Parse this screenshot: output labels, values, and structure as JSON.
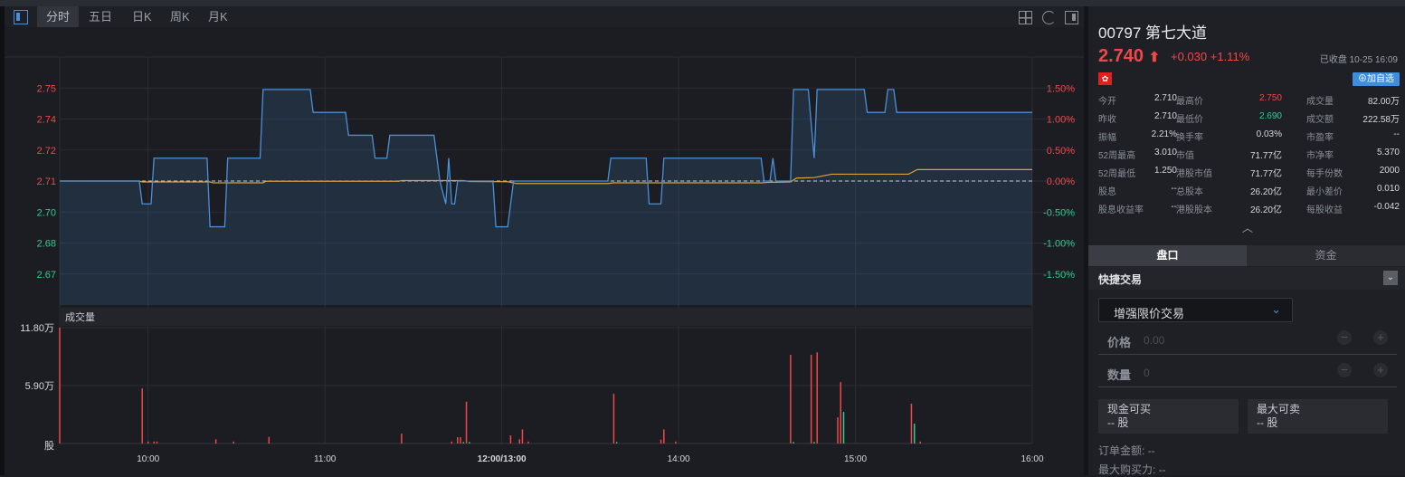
{
  "toolbar": {
    "tabs": [
      "分时",
      "五日",
      "日K",
      "周K",
      "月K"
    ],
    "active": "分时",
    "icons": [
      "grid-layout-icon",
      "refresh-icon",
      "panel-toggle-icon"
    ]
  },
  "colors": {
    "up": "#f04848",
    "down": "#2ecc8f",
    "price_line": "#4a90d9",
    "avg_line": "#d9a13a",
    "accent": "#3e8ee0"
  },
  "chart_data": [
    {
      "type": "line",
      "title": "分时",
      "x_axis_labels": [
        "10:00",
        "11:00",
        "12:00/13:00",
        "14:00",
        "15:00",
        "16:00"
      ],
      "x_axis_minutes": [
        30,
        90,
        150,
        210,
        270,
        330
      ],
      "minutes_total": 330,
      "prev_close": 2.71,
      "pct_range": [
        -2,
        2
      ],
      "left_ticks": [
        "2.75",
        "2.74",
        "2.72",
        "2.71",
        "2.70",
        "2.68",
        "2.67"
      ],
      "right_ticks": [
        "1.50%",
        "1.00%",
        "0.50%",
        "0.00%",
        "-0.50%",
        "-1.00%",
        "-1.50%"
      ],
      "tick_pcts": [
        1.5,
        1.0,
        0.5,
        0,
        -0.5,
        -1.0,
        -1.5
      ],
      "series": [
        {
          "name": "price",
          "points": [
            [
              0,
              2.71
            ],
            [
              27,
              2.71
            ],
            [
              28,
              2.7
            ],
            [
              31,
              2.7
            ],
            [
              32,
              2.72
            ],
            [
              50,
              2.72
            ],
            [
              51,
              2.69
            ],
            [
              56,
              2.69
            ],
            [
              57,
              2.72
            ],
            [
              68,
              2.72
            ],
            [
              69,
              2.75
            ],
            [
              85,
              2.75
            ],
            [
              86,
              2.74
            ],
            [
              97,
              2.74
            ],
            [
              98,
              2.73
            ],
            [
              106,
              2.73
            ],
            [
              107,
              2.72
            ],
            [
              111,
              2.72
            ],
            [
              112,
              2.73
            ],
            [
              127,
              2.73
            ],
            [
              129,
              2.71
            ],
            [
              131,
              2.7
            ],
            [
              132,
              2.72
            ],
            [
              133,
              2.7
            ],
            [
              134,
              2.7
            ],
            [
              135,
              2.71
            ],
            [
              147,
              2.71
            ],
            [
              148,
              2.69
            ],
            [
              152,
              2.69
            ],
            [
              154,
              2.71
            ],
            [
              186,
              2.71
            ],
            [
              187,
              2.72
            ],
            [
              199,
              2.72
            ],
            [
              200,
              2.7
            ],
            [
              204,
              2.7
            ],
            [
              205,
              2.72
            ],
            [
              238,
              2.72
            ],
            [
              239,
              2.71
            ],
            [
              241,
              2.71
            ],
            [
              242,
              2.72
            ],
            [
              243,
              2.71
            ],
            [
              248,
              2.71
            ],
            [
              249,
              2.75
            ],
            [
              254,
              2.75
            ],
            [
              256,
              2.72
            ],
            [
              257,
              2.75
            ],
            [
              273,
              2.75
            ],
            [
              274,
              2.74
            ],
            [
              280,
              2.74
            ],
            [
              281,
              2.75
            ],
            [
              283,
              2.75
            ],
            [
              284,
              2.74
            ],
            [
              330,
              2.74
            ]
          ]
        },
        {
          "name": "average",
          "points": [
            [
              0,
              2.71
            ],
            [
              27,
              2.71
            ],
            [
              28,
              2.7096
            ],
            [
              51,
              2.7096
            ],
            [
              52,
              2.7092
            ],
            [
              69,
              2.7092
            ],
            [
              70,
              2.7099
            ],
            [
              115,
              2.7099
            ],
            [
              116,
              2.7102
            ],
            [
              137,
              2.7102
            ],
            [
              139,
              2.7098
            ],
            [
              152,
              2.7097
            ],
            [
              155,
              2.7089
            ],
            [
              186,
              2.7089
            ],
            [
              188,
              2.7092
            ],
            [
              238,
              2.7092
            ],
            [
              240,
              2.7094
            ],
            [
              248,
              2.7096
            ],
            [
              250,
              2.7113
            ],
            [
              256,
              2.7115
            ],
            [
              258,
              2.712
            ],
            [
              262,
              2.713
            ],
            [
              288,
              2.713
            ],
            [
              291,
              2.715
            ],
            [
              330,
              2.715
            ]
          ]
        }
      ]
    },
    {
      "type": "bar",
      "title": "成交量",
      "y_ticks": [
        "11.80万",
        "5.90万",
        "股"
      ],
      "ymax": 11.8,
      "unit": "万股",
      "bars": [
        [
          0,
          11.8,
          "up"
        ],
        [
          28,
          5.61,
          "up"
        ],
        [
          30,
          0.2,
          "up"
        ],
        [
          32,
          0.2,
          "up"
        ],
        [
          33,
          0.2,
          "up"
        ],
        [
          53,
          0.43,
          "up"
        ],
        [
          59,
          0.2,
          "up"
        ],
        [
          71,
          0.67,
          "up"
        ],
        [
          116,
          1.01,
          "up"
        ],
        [
          133,
          0.2,
          "up"
        ],
        [
          135,
          0.64,
          "up"
        ],
        [
          136,
          0.64,
          "up"
        ],
        [
          137,
          0.15,
          "down"
        ],
        [
          138,
          4.26,
          "up"
        ],
        [
          139,
          0.15,
          "down"
        ],
        [
          153,
          0.83,
          "up"
        ],
        [
          156,
          0.43,
          "up"
        ],
        [
          157,
          1.44,
          "up"
        ],
        [
          159,
          0.2,
          "up"
        ],
        [
          188,
          5.06,
          "up"
        ],
        [
          189,
          0.15,
          "down"
        ],
        [
          204,
          0.4,
          "up"
        ],
        [
          205,
          1.44,
          "up"
        ],
        [
          209,
          0.2,
          "up"
        ],
        [
          248,
          9.04,
          "up"
        ],
        [
          249,
          0.15,
          "down"
        ],
        [
          255,
          9.04,
          "up"
        ],
        [
          256,
          0.15,
          "down"
        ],
        [
          257,
          9.29,
          "up"
        ],
        [
          264,
          2.67,
          "up"
        ],
        [
          265,
          6.25,
          "up"
        ],
        [
          266,
          3.22,
          "down"
        ],
        [
          289,
          4.05,
          "up"
        ],
        [
          290,
          2.02,
          "down"
        ],
        [
          292,
          0.2,
          "up"
        ]
      ]
    }
  ],
  "quote": {
    "code": "00797",
    "name": "第七大道",
    "price": "2.740",
    "change": "+0.030",
    "change_pct": "+1.11%",
    "status": "已收盘 10-25 16:09",
    "flag": "✿",
    "add_watch": "加自选",
    "rows": [
      [
        [
          "今开",
          "2.710",
          ""
        ],
        [
          "最高价",
          "2.750",
          "up"
        ],
        [
          "成交量",
          "82.00万",
          ""
        ]
      ],
      [
        [
          "昨收",
          "2.710",
          ""
        ],
        [
          "最低价",
          "2.690",
          "down"
        ],
        [
          "成交额",
          "222.58万",
          ""
        ]
      ],
      [
        [
          "振幅",
          "2.21%",
          ""
        ],
        [
          "换手率",
          "0.03%",
          ""
        ],
        [
          "市盈率",
          "--",
          ""
        ]
      ],
      [
        [
          "52周最高",
          "3.010",
          ""
        ],
        [
          "市值",
          "71.77亿",
          ""
        ],
        [
          "市净率",
          "5.370",
          ""
        ]
      ],
      [
        [
          "52周最低",
          "1.250",
          ""
        ],
        [
          "港股市值",
          "71.77亿",
          ""
        ],
        [
          "每手份数",
          "2000",
          ""
        ]
      ],
      [
        [
          "股息",
          "--",
          ""
        ],
        [
          "总股本",
          "26.20亿",
          ""
        ],
        [
          "最小差价",
          "0.010",
          ""
        ]
      ],
      [
        [
          "股息收益率",
          "--",
          ""
        ],
        [
          "港股股本",
          "26.20亿",
          ""
        ],
        [
          "每股收益",
          "-0.042",
          ""
        ]
      ]
    ]
  },
  "panel": {
    "tabs": [
      "盘口",
      "资金"
    ],
    "active": "盘口"
  },
  "trade": {
    "title": "快捷交易",
    "order_type": "增强限价交易",
    "price_label": "价格",
    "price_placeholder": "0.00",
    "qty_label": "数量",
    "qty_placeholder": "0",
    "minus": "−",
    "plus": "+",
    "cash_buy_label": "现金可买",
    "cash_buy_value": "-- 股",
    "max_sell_label": "最大可卖",
    "max_sell_value": "-- 股",
    "order_amount_label": "订单金额:",
    "order_amount_value": "--",
    "max_power_label": "最大购买力:",
    "max_power_value": "--"
  }
}
